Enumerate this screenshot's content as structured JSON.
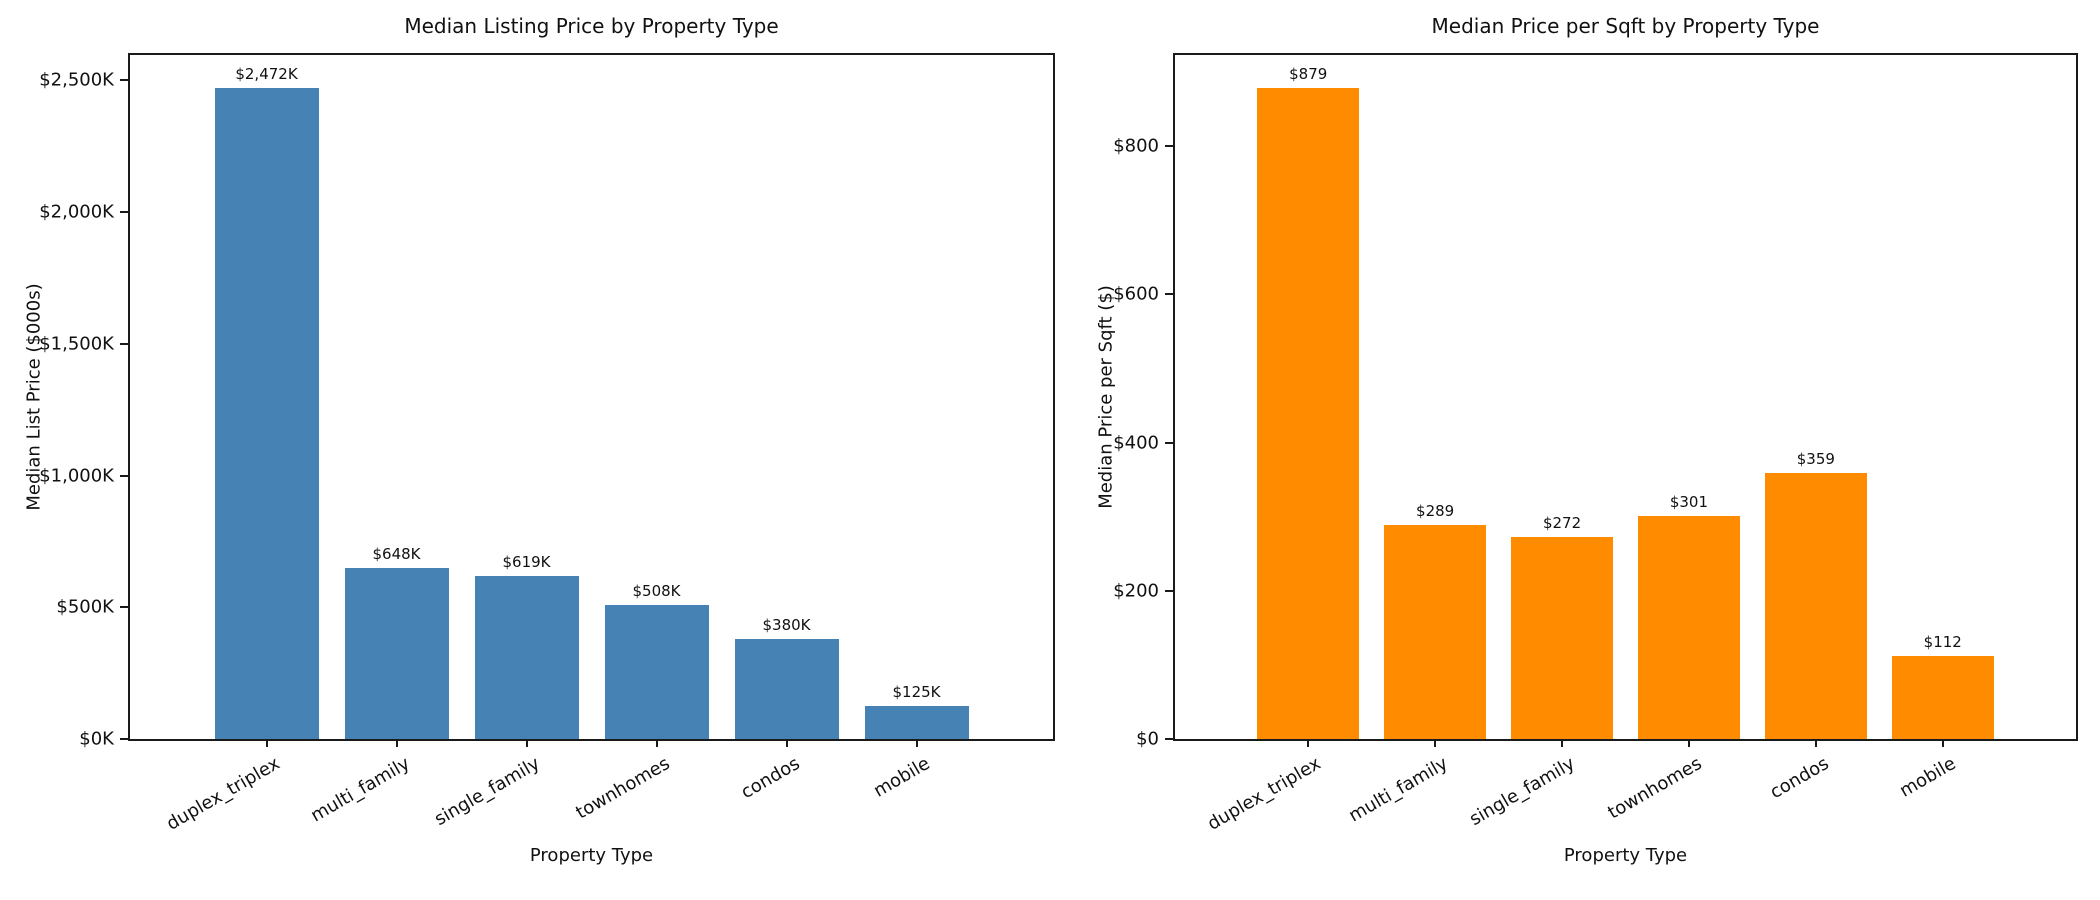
{
  "figure": {
    "background": "#ffffff",
    "text_color": "#111111",
    "axis_color": "#1a1a1a"
  },
  "chart_data": [
    {
      "type": "bar",
      "title": "Median Listing Price by Property Type",
      "xlabel": "Property Type",
      "ylabel": "Median List Price ($000s)",
      "categories": [
        "duplex_triplex",
        "multi_family",
        "single_family",
        "townhomes",
        "condos",
        "mobile"
      ],
      "values": [
        2472,
        648,
        619,
        508,
        380,
        125
      ],
      "bar_labels": [
        "$2,472K",
        "$648K",
        "$619K",
        "$508K",
        "$380K",
        "$125K"
      ],
      "bar_color": "#4682b4",
      "yticks": [
        {
          "value": 0,
          "label": "$0K"
        },
        {
          "value": 500,
          "label": "$500K"
        },
        {
          "value": 1000,
          "label": "$1,000K"
        },
        {
          "value": 1500,
          "label": "$1,500K"
        },
        {
          "value": 2000,
          "label": "$2,000K"
        },
        {
          "value": 2500,
          "label": "$2,500K"
        }
      ],
      "ylim": [
        0,
        2596
      ],
      "grid": false,
      "legend": null,
      "xtick_rotation_deg": 30
    },
    {
      "type": "bar",
      "title": "Median Price per Sqft by Property Type",
      "xlabel": "Property Type",
      "ylabel": "Median Price per Sqft ($)",
      "categories": [
        "duplex_triplex",
        "multi_family",
        "single_family",
        "townhomes",
        "condos",
        "mobile"
      ],
      "values": [
        879,
        289,
        272,
        301,
        359,
        112
      ],
      "bar_labels": [
        "$879",
        "$289",
        "$272",
        "$301",
        "$359",
        "$112"
      ],
      "bar_color": "#ff8c00",
      "yticks": [
        {
          "value": 0,
          "label": "$0"
        },
        {
          "value": 200,
          "label": "$200"
        },
        {
          "value": 400,
          "label": "$400"
        },
        {
          "value": 600,
          "label": "$600"
        },
        {
          "value": 800,
          "label": "$800"
        }
      ],
      "ylim": [
        0,
        923
      ],
      "grid": false,
      "legend": null,
      "xtick_rotation_deg": 30
    }
  ]
}
